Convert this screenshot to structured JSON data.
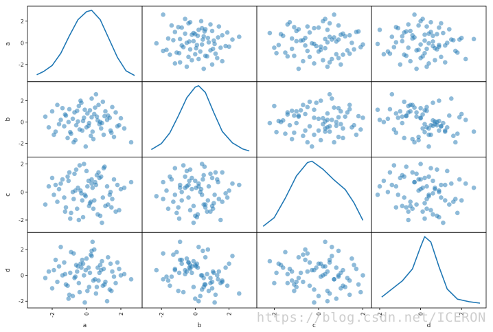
{
  "chart_data": {
    "type": "scatter",
    "variables": [
      "a",
      "b",
      "c",
      "d"
    ],
    "diagonal": "kde",
    "ranges": {
      "a": [
        -3.2,
        3.0
      ],
      "b": [
        -2.9,
        3.4
      ],
      "c": [
        -2.6,
        2.2
      ],
      "d": [
        -2.2,
        3.0
      ]
    },
    "ticks": {
      "a": [
        -2,
        0,
        2
      ],
      "b": [
        -2,
        0,
        2
      ],
      "c": [
        -2,
        0,
        2
      ],
      "d": [
        -2,
        0,
        2
      ]
    },
    "kde": {
      "a": [
        [
          -2.9,
          0.04
        ],
        [
          -2.5,
          0.09
        ],
        [
          -2.0,
          0.18
        ],
        [
          -1.5,
          0.36
        ],
        [
          -1.0,
          0.62
        ],
        [
          -0.5,
          0.86
        ],
        [
          0.0,
          0.98
        ],
        [
          0.3,
          1.0
        ],
        [
          0.8,
          0.86
        ],
        [
          1.3,
          0.58
        ],
        [
          1.8,
          0.3
        ],
        [
          2.3,
          0.1
        ],
        [
          2.8,
          0.03
        ]
      ],
      "b": [
        [
          -2.6,
          0.05
        ],
        [
          -2.0,
          0.14
        ],
        [
          -1.5,
          0.3
        ],
        [
          -1.0,
          0.55
        ],
        [
          -0.5,
          0.82
        ],
        [
          0.0,
          0.98
        ],
        [
          0.2,
          1.0
        ],
        [
          0.6,
          0.9
        ],
        [
          1.1,
          0.6
        ],
        [
          1.6,
          0.32
        ],
        [
          2.2,
          0.15
        ],
        [
          2.8,
          0.06
        ],
        [
          3.2,
          0.03
        ]
      ],
      "c": [
        [
          -2.5,
          0.03
        ],
        [
          -2.0,
          0.16
        ],
        [
          -1.5,
          0.45
        ],
        [
          -1.0,
          0.78
        ],
        [
          -0.5,
          0.98
        ],
        [
          -0.3,
          1.0
        ],
        [
          0.2,
          0.88
        ],
        [
          0.7,
          0.72
        ],
        [
          1.2,
          0.58
        ],
        [
          1.6,
          0.38
        ],
        [
          2.0,
          0.12
        ]
      ],
      "d": [
        [
          -1.9,
          0.1
        ],
        [
          -1.4,
          0.22
        ],
        [
          -0.9,
          0.34
        ],
        [
          -0.4,
          0.52
        ],
        [
          0.0,
          0.85
        ],
        [
          0.2,
          1.0
        ],
        [
          0.5,
          0.92
        ],
        [
          0.9,
          0.55
        ],
        [
          1.3,
          0.22
        ],
        [
          1.8,
          0.07
        ],
        [
          2.4,
          0.03
        ],
        [
          2.9,
          0.01
        ]
      ]
    },
    "points": [
      [
        0.12,
        -0.35,
        0.8,
        0.6
      ],
      [
        -0.55,
        1.05,
        -1.2,
        0.3
      ],
      [
        1.35,
        0.4,
        -0.2,
        -1.1
      ],
      [
        -1.8,
        -0.9,
        0.5,
        1.2
      ],
      [
        0.7,
        1.6,
        1.4,
        -0.4
      ],
      [
        -0.2,
        0.1,
        -1.8,
        0.9
      ],
      [
        2.2,
        -0.6,
        0.3,
        0.1
      ],
      [
        -1.1,
        -1.5,
        1.1,
        -0.8
      ],
      [
        0.45,
        0.75,
        -0.6,
        2.0
      ],
      [
        -0.8,
        0.3,
        0.0,
        -1.6
      ],
      [
        1.0,
        -1.2,
        1.7,
        0.5
      ],
      [
        -2.4,
        0.5,
        -0.9,
        -0.2
      ],
      [
        0.3,
        2.2,
        0.6,
        1.5
      ],
      [
        -0.05,
        -2.3,
        -0.3,
        0.4
      ],
      [
        1.7,
        0.9,
        -1.4,
        -0.6
      ],
      [
        -1.4,
        1.3,
        0.9,
        0.0
      ],
      [
        0.9,
        -0.1,
        -2.2,
        1.1
      ],
      [
        -0.4,
        -0.7,
        1.9,
        -1.3
      ],
      [
        0.2,
        1.1,
        -0.8,
        0.2
      ],
      [
        -1.6,
        -0.2,
        0.2,
        0.7
      ],
      [
        1.2,
        0.2,
        0.4,
        -2.0
      ],
      [
        -0.9,
        -1.1,
        -1.5,
        1.8
      ],
      [
        0.6,
        0.5,
        1.2,
        -0.9
      ],
      [
        -0.3,
        1.8,
        -0.1,
        0.6
      ],
      [
        2.6,
        -1.9,
        0.7,
        -0.3
      ],
      [
        -1.2,
        0.6,
        -1.1,
        -0.7
      ],
      [
        0.0,
        -0.5,
        1.5,
        1.3
      ],
      [
        1.5,
        1.4,
        -0.5,
        0.3
      ],
      [
        -0.65,
        -1.7,
        0.1,
        -0.1
      ],
      [
        0.8,
        0.0,
        -1.7,
        0.8
      ],
      [
        -2.0,
        1.0,
        1.0,
        -1.0
      ],
      [
        0.35,
        -0.9,
        0.3,
        2.6
      ],
      [
        1.1,
        1.0,
        -1.0,
        -0.5
      ],
      [
        -0.15,
        0.4,
        2.0,
        0.0
      ],
      [
        -1.3,
        -0.4,
        -0.4,
        1.0
      ],
      [
        0.55,
        2.6,
        0.5,
        -1.4
      ],
      [
        1.9,
        -0.3,
        -1.3,
        0.5
      ],
      [
        -0.7,
        0.9,
        1.3,
        -0.2
      ],
      [
        0.25,
        -1.3,
        -0.7,
        1.6
      ],
      [
        -1.05,
        0.0,
        0.8,
        -1.8
      ],
      [
        1.4,
        -0.8,
        0.0,
        0.9
      ],
      [
        -0.45,
        1.5,
        -2.0,
        -0.6
      ],
      [
        0.75,
        -0.2,
        1.0,
        0.2
      ],
      [
        -1.9,
        -1.2,
        -0.2,
        0.4
      ],
      [
        0.05,
        0.8,
        0.4,
        -1.2
      ],
      [
        1.25,
        0.6,
        -0.9,
        1.4
      ],
      [
        -0.6,
        -0.3,
        1.6,
        0.8
      ],
      [
        0.95,
        1.9,
        -0.4,
        -0.8
      ],
      [
        -1.5,
        0.2,
        0.6,
        2.2
      ],
      [
        0.4,
        -1.6,
        -1.2,
        -0.4
      ],
      [
        2.0,
        0.35,
        0.2,
        0.0
      ],
      [
        -0.25,
        -0.8,
        -0.6,
        1.2
      ],
      [
        -1.0,
        1.2,
        1.4,
        -1.5
      ],
      [
        0.65,
        0.15,
        -1.6,
        0.6
      ],
      [
        1.6,
        -1.4,
        0.9,
        -0.1
      ],
      [
        -0.35,
        2.0,
        0.1,
        0.9
      ],
      [
        0.15,
        -0.1,
        -1.0,
        -0.9
      ],
      [
        -2.2,
        -0.5,
        0.4,
        0.3
      ],
      [
        1.05,
        0.55,
        1.8,
        -0.7
      ],
      [
        -0.75,
        -1.9,
        -0.5,
        1.7
      ],
      [
        0.5,
        1.35,
        0.7,
        -0.3
      ],
      [
        -1.25,
        0.7,
        -1.4,
        0.1
      ],
      [
        1.8,
        -0.4,
        0.5,
        1.0
      ],
      [
        -0.1,
        1.15,
        -0.2,
        -2.1
      ],
      [
        0.85,
        -0.6,
        1.1,
        0.4
      ],
      [
        -1.7,
        1.6,
        -0.7,
        -0.5
      ],
      [
        0.3,
        0.45,
        0.9,
        1.9
      ],
      [
        1.45,
        -1.0,
        -1.1,
        -1.2
      ],
      [
        -0.5,
        0.05,
        0.3,
        0.7
      ],
      [
        -0.95,
        -0.95,
        -1.9,
        0.2
      ]
    ]
  },
  "watermark": "https://blog.csdn.net/ICERON"
}
